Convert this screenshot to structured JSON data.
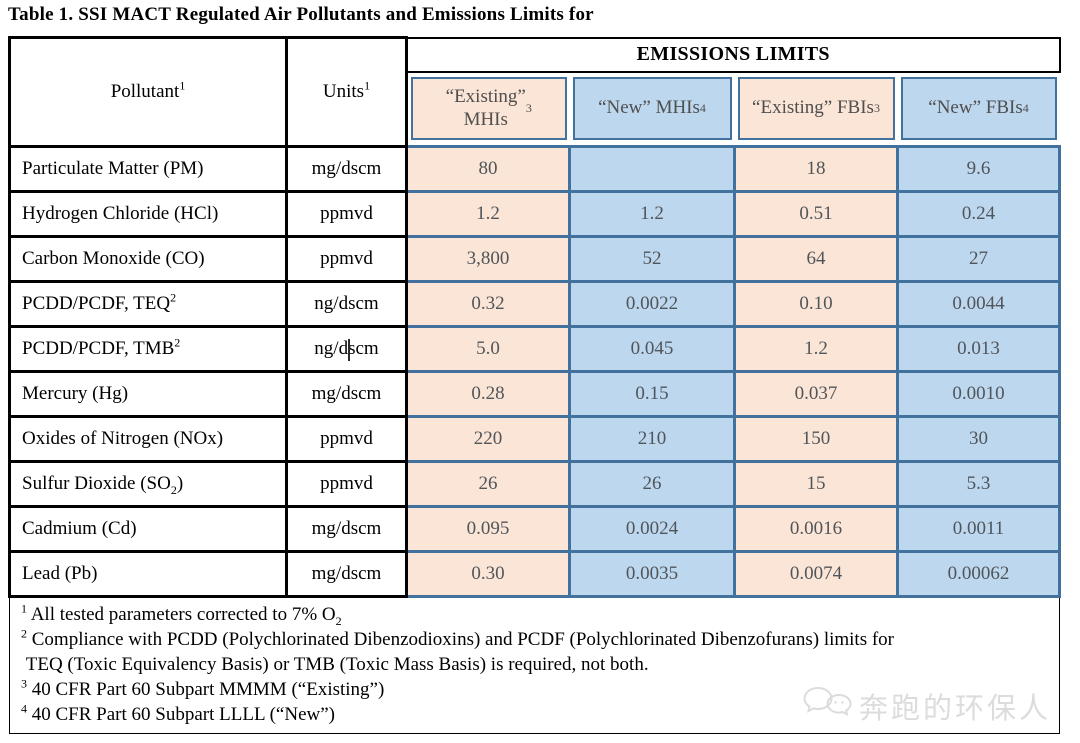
{
  "page": {
    "title": "Table 1. SSI MACT Regulated Air Pollutants and Emissions Limits for"
  },
  "table": {
    "header": {
      "pollutant": "Pollutant^1^",
      "units": "Units^1^",
      "emissions_limits": "EMISSIONS LIMITS",
      "columns": [
        {
          "label": "“Existing”\nMHIs^3^",
          "tone": "existing"
        },
        {
          "label": "“New” MHIs^4^",
          "tone": "new"
        },
        {
          "label": "“Existing” FBIs^3^",
          "tone": "existing"
        },
        {
          "label": "“New” FBIs^4^",
          "tone": "new"
        }
      ]
    },
    "rows": [
      {
        "pollutant": "Particulate Matter (PM)",
        "units": "mg/dscm",
        "values": [
          "80",
          "",
          "18",
          "9.6"
        ]
      },
      {
        "pollutant": "Hydrogen Chloride (HCl)",
        "units": "ppmvd",
        "values": [
          "1.2",
          "1.2",
          "0.51",
          "0.24"
        ]
      },
      {
        "pollutant": "Carbon Monoxide (CO)",
        "units": "ppmvd",
        "values": [
          "3,800",
          "52",
          "64",
          "27"
        ]
      },
      {
        "pollutant": "PCDD/PCDF, TEQ^2^",
        "units": "ng/dscm",
        "values": [
          "0.32",
          "0.0022",
          "0.10",
          "0.0044"
        ]
      },
      {
        "pollutant": "PCDD/PCDF, TMB^2^",
        "units": "ng/dscm",
        "values": [
          "5.0",
          "0.045",
          "1.2",
          "0.013"
        ]
      },
      {
        "pollutant": "Mercury (Hg)",
        "units": "mg/dscm",
        "values": [
          "0.28",
          "0.15",
          "0.037",
          "0.0010"
        ]
      },
      {
        "pollutant": "Oxides of Nitrogen (NOx)",
        "units": "ppmvd",
        "values": [
          "220",
          "210",
          "150",
          "30"
        ]
      },
      {
        "pollutant": "Sulfur Dioxide (SO~2~)",
        "units": "ppmvd",
        "values": [
          "26",
          "26",
          "15",
          "5.3"
        ]
      },
      {
        "pollutant": "Cadmium (Cd)",
        "units": "mg/dscm",
        "values": [
          "0.095",
          "0.0024",
          "0.0016",
          "0.0011"
        ]
      },
      {
        "pollutant": "Lead (Pb)",
        "units": "mg/dscm",
        "values": [
          "0.30",
          "0.0035",
          "0.0074",
          "0.00062"
        ]
      }
    ]
  },
  "footnotes": [
    "^1^ All tested parameters corrected to 7% O~2~",
    "^2^ Compliance with PCDD (Polychlorinated Dibenzodioxins) and PCDF (Polychlorinated Dibenzofurans) limits for\n TEQ (Toxic Equivalency Basis) or TMB (Toxic Mass Basis) is required, not both.",
    "^3^ 40 CFR Part 60 Subpart MMMM (“Existing”)",
    "^4^ 40 CFR Part 60 Subpart LLLL (“New”)"
  ],
  "watermark": {
    "text": "奔跑的环保人",
    "icon": "chat-bubbles-icon"
  },
  "colors": {
    "existing_fill": "#FBE5D6",
    "new_fill": "#BDD7EE",
    "cell_border": "#41719C",
    "grid_border": "#000000",
    "watermark_gray": "#DCDCDC"
  }
}
